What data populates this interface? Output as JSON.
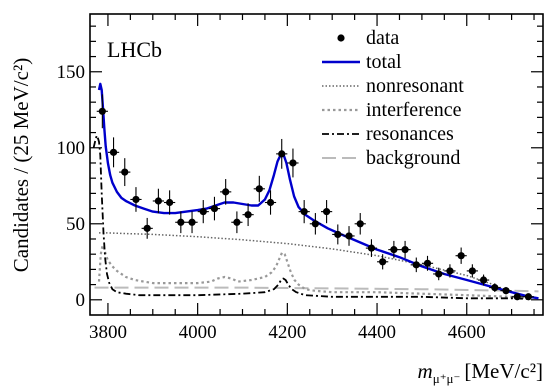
{
  "chart_data": {
    "type": "scatter",
    "xlabel_math": "m",
    "xlabel_sub": "μ⁺μ⁻",
    "xlabel_units": "[MeV/c²]",
    "ylabel": "Candidates / (25 MeV/c²)",
    "xlim": [
      3760,
      4770
    ],
    "ylim": [
      -10,
      188
    ],
    "xticks": [
      3800,
      4000,
      4200,
      4400,
      4600
    ],
    "xtick_labels": [
      "3800",
      "4000",
      "4200",
      "4400",
      "4600"
    ],
    "yticks": [
      0,
      50,
      100,
      150
    ],
    "ytick_labels": [
      "0",
      "50",
      "100",
      "150"
    ],
    "annotation": "LHCb",
    "legend": [
      "data",
      "total",
      "nonresonant",
      "interference",
      "resonances",
      "background"
    ],
    "legend_position": "top-right",
    "data": {
      "name": "data",
      "color": "#000000",
      "bin_width": 25,
      "x": [
        3787.5,
        3812.5,
        3837.5,
        3862.5,
        3887.5,
        3912.5,
        3937.5,
        3962.5,
        3987.5,
        4012.5,
        4037.5,
        4062.5,
        4087.5,
        4112.5,
        4137.5,
        4162.5,
        4187.5,
        4212.5,
        4237.5,
        4262.5,
        4287.5,
        4312.5,
        4337.5,
        4362.5,
        4387.5,
        4412.5,
        4437.5,
        4462.5,
        4487.5,
        4512.5,
        4537.5,
        4562.5,
        4587.5,
        4612.5,
        4637.5,
        4662.5,
        4687.5,
        4712.5,
        4737.5
      ],
      "y": [
        124,
        97,
        84,
        66,
        47,
        65,
        64,
        51,
        51,
        58,
        60,
        71,
        51,
        56,
        73,
        64,
        96,
        90,
        58,
        50,
        58,
        43,
        42,
        50,
        34,
        25,
        33,
        33,
        23,
        24,
        17,
        19,
        29,
        19,
        13,
        8,
        6,
        2,
        2
      ]
    },
    "total": {
      "name": "total",
      "color": "#0000cc",
      "x": [
        3780,
        3783,
        3786,
        3789,
        3792,
        3795,
        3800,
        3805,
        3810,
        3820,
        3830,
        3840,
        3860,
        3880,
        3900,
        3925,
        3950,
        3975,
        4000,
        4020,
        4040,
        4060,
        4080,
        4100,
        4120,
        4135,
        4150,
        4160,
        4170,
        4178,
        4186,
        4192,
        4198,
        4206,
        4215,
        4225,
        4240,
        4260,
        4290,
        4320,
        4360,
        4400,
        4450,
        4500,
        4550,
        4600,
        4650,
        4700,
        4740,
        4760
      ],
      "y": [
        138,
        142,
        138,
        126,
        112,
        101,
        90,
        82,
        77,
        71,
        67,
        65,
        62,
        60,
        58,
        57,
        57,
        58,
        59,
        60,
        62,
        64,
        64,
        63,
        62,
        62,
        66,
        72,
        82,
        91,
        96,
        95,
        90,
        79,
        68,
        61,
        56,
        52,
        47,
        43,
        38,
        33,
        28,
        22,
        17,
        13,
        9,
        5,
        2,
        1
      ]
    },
    "nonresonant": {
      "name": "nonresonant",
      "color": "#666666",
      "x": [
        3780,
        3800,
        3850,
        3900,
        4000,
        4100,
        4200,
        4300,
        4400,
        4500,
        4600,
        4650,
        4700,
        4740
      ],
      "y": [
        44,
        44,
        43.5,
        43,
        41.5,
        39.5,
        37,
        33.5,
        29,
        23,
        16,
        11,
        5,
        0.5
      ]
    },
    "interference": {
      "name": "interference",
      "color": "#999999",
      "x": [
        3780,
        3784,
        3788,
        3792,
        3796,
        3800,
        3810,
        3820,
        3840,
        3860,
        3880,
        3900,
        3950,
        4000,
        4030,
        4045,
        4060,
        4075,
        4090,
        4120,
        4150,
        4165,
        4175,
        4182,
        4188,
        4194,
        4200,
        4208,
        4216,
        4225,
        4240,
        4260,
        4300,
        4400,
        4500,
        4600,
        4700,
        4740
      ],
      "y": [
        12,
        30,
        36,
        33,
        29,
        26,
        22,
        19,
        15,
        13,
        12,
        11,
        11,
        11,
        12,
        14,
        15,
        14,
        12,
        13,
        15,
        18,
        22,
        27,
        31,
        30,
        25,
        18,
        13,
        10,
        7,
        6,
        5,
        5,
        4,
        3,
        2,
        1
      ]
    },
    "resonances": {
      "name": "resonances",
      "color": "#000000",
      "x": [
        3768,
        3772,
        3775,
        3778,
        3780,
        3783,
        3786,
        3790,
        3794,
        3798,
        3803,
        3810,
        3820,
        3840,
        3870,
        3900,
        4000,
        4100,
        4150,
        4170,
        4180,
        4186,
        4191,
        4196,
        4202,
        4210,
        4220,
        4240,
        4300,
        4400,
        4500,
        4600,
        4700,
        4740
      ],
      "y": [
        100,
        105,
        108,
        106,
        104,
        95,
        70,
        44,
        27,
        17,
        11,
        7,
        5,
        4,
        3,
        3,
        3,
        4,
        5,
        7,
        10,
        13,
        14,
        13,
        10,
        7,
        5,
        3,
        2,
        2,
        2,
        1,
        1,
        0.5
      ]
    },
    "background": {
      "name": "background",
      "color": "#bbbbbb",
      "x": [
        3770,
        3900,
        4100,
        4300,
        4500,
        4700,
        4760
      ],
      "y": [
        8,
        8,
        8,
        7.5,
        7,
        6,
        5.5
      ]
    }
  }
}
